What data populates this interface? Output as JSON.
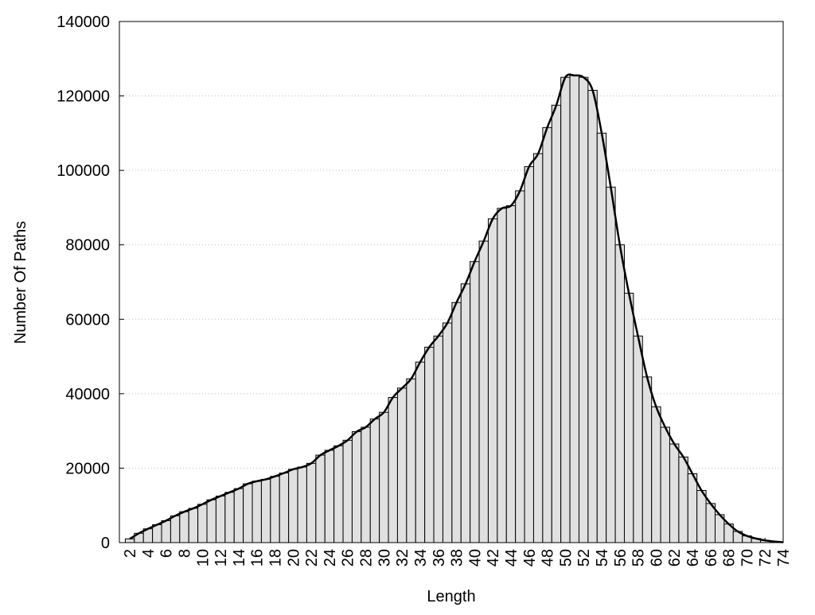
{
  "chart_data": {
    "type": "histogram",
    "xlabel": "Length",
    "ylabel": "Number Of Paths",
    "x": [
      2,
      3,
      4,
      5,
      6,
      7,
      8,
      9,
      10,
      11,
      12,
      13,
      14,
      15,
      16,
      17,
      18,
      19,
      20,
      21,
      22,
      23,
      24,
      25,
      26,
      27,
      28,
      29,
      30,
      31,
      32,
      33,
      34,
      35,
      36,
      37,
      38,
      39,
      40,
      41,
      42,
      43,
      44,
      45,
      46,
      47,
      48,
      49,
      50,
      51,
      52,
      53,
      54,
      55,
      56,
      57,
      58,
      59,
      60,
      61,
      62,
      63,
      64,
      65,
      66,
      67,
      68,
      69,
      70,
      71,
      72,
      73,
      74
    ],
    "values": [
      1000,
      2500,
      3700,
      4800,
      5900,
      7200,
      8300,
      9200,
      10300,
      11500,
      12500,
      13500,
      14500,
      15800,
      16500,
      17000,
      17800,
      18700,
      19700,
      20300,
      21300,
      23500,
      24800,
      26000,
      27500,
      29800,
      31000,
      33200,
      35000,
      39000,
      41500,
      44000,
      48500,
      52500,
      55500,
      59000,
      64500,
      69500,
      75500,
      81000,
      87000,
      89800,
      90500,
      94500,
      101000,
      104500,
      111500,
      117500,
      125000,
      125500,
      125000,
      121500,
      110000,
      95500,
      80000,
      67000,
      55500,
      44500,
      36500,
      31000,
      26500,
      23000,
      18500,
      14000,
      10500,
      7500,
      5000,
      3000,
      1800,
      1100,
      600,
      300,
      100
    ],
    "bar_color": "#e0e0e0",
    "line_color": "#000000",
    "smooth_line": true,
    "xlim": [
      0.85,
      74
    ],
    "xticks": [
      2,
      4,
      6,
      8,
      10,
      12,
      14,
      16,
      18,
      20,
      22,
      24,
      26,
      28,
      30,
      32,
      34,
      36,
      38,
      40,
      42,
      44,
      46,
      48,
      50,
      52,
      54,
      56,
      58,
      60,
      62,
      64,
      66,
      68,
      70,
      72,
      74
    ],
    "ylim": [
      0,
      140000
    ],
    "yticks": [
      0,
      20000,
      40000,
      60000,
      80000,
      100000,
      120000,
      140000
    ],
    "grid": true
  }
}
